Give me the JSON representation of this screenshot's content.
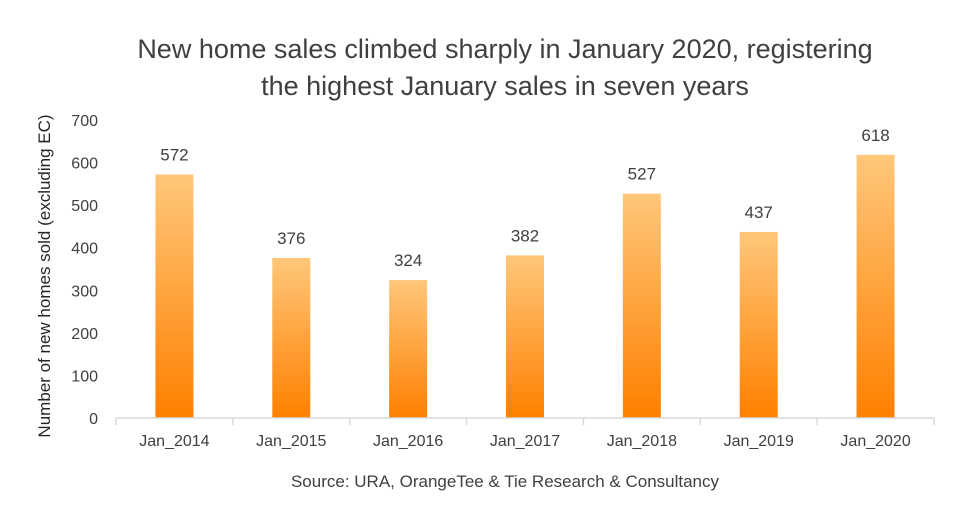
{
  "chart_data": {
    "type": "bar",
    "title_lines": [
      "New home sales climbed sharply in January 2020, registering",
      "the highest January sales in seven years"
    ],
    "categories": [
      "Jan_2014",
      "Jan_2015",
      "Jan_2016",
      "Jan_2017",
      "Jan_2018",
      "Jan_2019",
      "Jan_2020"
    ],
    "values": [
      572,
      376,
      324,
      382,
      527,
      437,
      618
    ],
    "ylabel": "Number of new homes sold (excluding EC)",
    "xlabel": "Source: URA, OrangeTee & Tie Research & Consultancy",
    "ylim": [
      0,
      700
    ],
    "yticks": [
      0,
      100,
      200,
      300,
      400,
      500,
      600,
      700
    ],
    "grid": false,
    "legend": "none",
    "colors": {
      "bar_top": "#FFC77A",
      "bar_bottom": "#FF8000",
      "axis": "#D9D9D9"
    }
  }
}
